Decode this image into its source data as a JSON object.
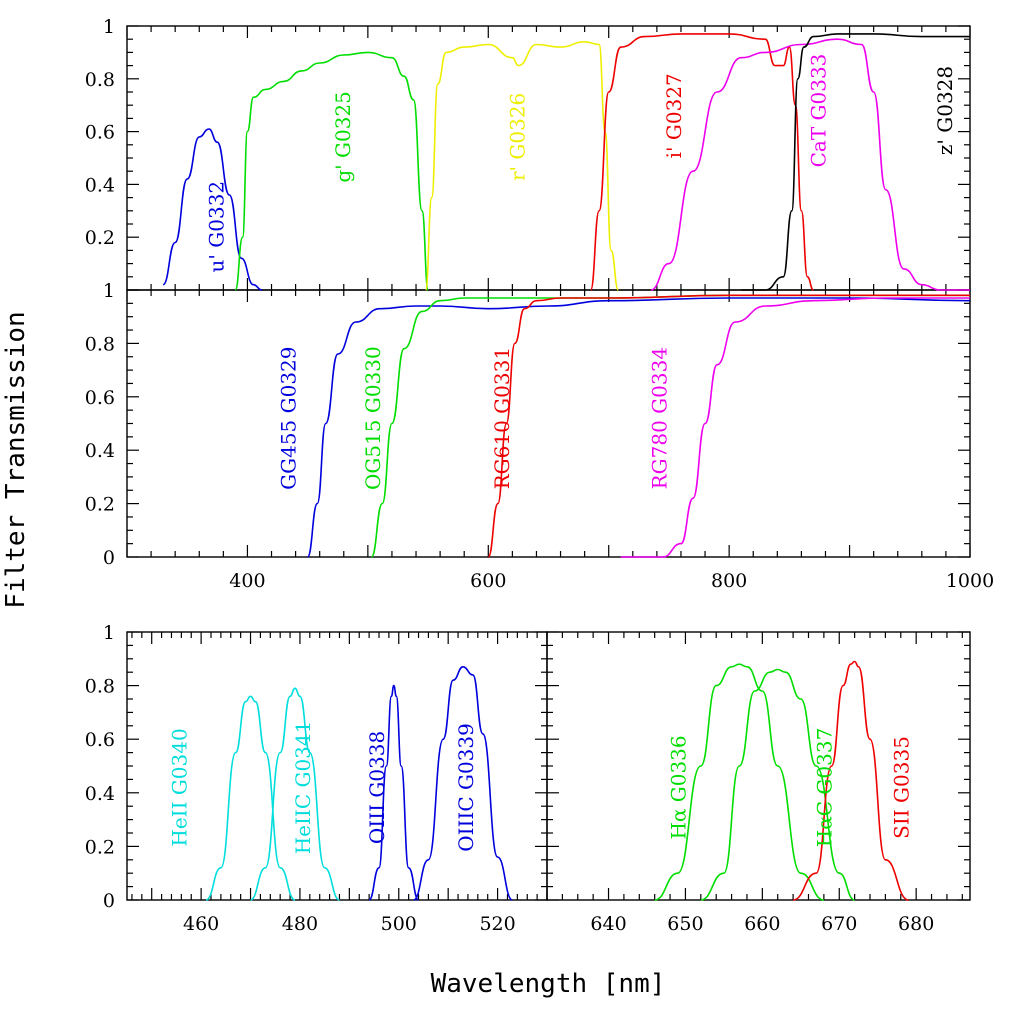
{
  "chart_data": [
    {
      "type": "line",
      "panel": "top",
      "ylim": [
        0,
        1
      ],
      "xlim": [
        300,
        1000
      ],
      "yticks": [
        "0.2",
        "0.4",
        "0.6",
        "0.8",
        "1"
      ],
      "series": [
        {
          "name": "u' G0332",
          "color": "#0000dd",
          "x": [
            330,
            340,
            350,
            360,
            368,
            375,
            385,
            395,
            405,
            412
          ],
          "y": [
            0.02,
            0.18,
            0.42,
            0.58,
            0.61,
            0.56,
            0.36,
            0.12,
            0.02,
            0
          ]
        },
        {
          "name": "g' G0325",
          "color": "#00dd00",
          "x": [
            390,
            396,
            400,
            405,
            415,
            430,
            445,
            460,
            480,
            500,
            520,
            530,
            538,
            545,
            550
          ],
          "y": [
            0,
            0.2,
            0.6,
            0.73,
            0.76,
            0.79,
            0.83,
            0.86,
            0.89,
            0.9,
            0.88,
            0.81,
            0.72,
            0.3,
            0
          ]
        },
        {
          "name": "r' G0326",
          "color": "#eeee00",
          "x": [
            548,
            553,
            558,
            565,
            580,
            600,
            620,
            625,
            640,
            660,
            680,
            692,
            697,
            702,
            708
          ],
          "y": [
            0,
            0.35,
            0.78,
            0.9,
            0.92,
            0.93,
            0.88,
            0.85,
            0.93,
            0.92,
            0.94,
            0.93,
            0.6,
            0.15,
            0
          ]
        },
        {
          "name": "i' G0327",
          "color": "#ee0000",
          "x": [
            685,
            692,
            700,
            710,
            730,
            760,
            800,
            830,
            838,
            845,
            850,
            855,
            860,
            865,
            870
          ],
          "y": [
            0,
            0.3,
            0.75,
            0.92,
            0.96,
            0.97,
            0.97,
            0.95,
            0.85,
            0.85,
            0.92,
            0.7,
            0.3,
            0.05,
            0
          ]
        },
        {
          "name": "CaT G0333",
          "color": "#ee00ee",
          "x": [
            735,
            750,
            770,
            790,
            810,
            830,
            860,
            890,
            910,
            920,
            930,
            945,
            960,
            975,
            1000
          ],
          "y": [
            0,
            0.1,
            0.45,
            0.75,
            0.88,
            0.9,
            0.93,
            0.95,
            0.93,
            0.75,
            0.38,
            0.08,
            0.02,
            0,
            0
          ]
        },
        {
          "name": "z' G0328",
          "color": "#000000",
          "x": [
            810,
            830,
            845,
            852,
            857,
            862,
            870,
            890,
            920,
            960,
            1000
          ],
          "y": [
            0,
            0,
            0.05,
            0.3,
            0.8,
            0.92,
            0.96,
            0.97,
            0.97,
            0.96,
            0.96
          ]
        }
      ]
    },
    {
      "type": "line",
      "panel": "middle",
      "ylim": [
        0,
        1
      ],
      "xlim": [
        300,
        1000
      ],
      "xticks": [
        "400",
        "600",
        "800",
        "1000"
      ],
      "yticks": [
        "0",
        "0.2",
        "0.4",
        "0.6",
        "0.8",
        "1"
      ],
      "series": [
        {
          "name": "GG455 G0329",
          "color": "#0000dd",
          "x": [
            450,
            458,
            465,
            475,
            490,
            510,
            540,
            560,
            600,
            650,
            700,
            800,
            900,
            1000
          ],
          "y": [
            0,
            0.2,
            0.5,
            0.76,
            0.88,
            0.93,
            0.94,
            0.94,
            0.93,
            0.94,
            0.96,
            0.97,
            0.97,
            0.96
          ]
        },
        {
          "name": "OG515 G0330",
          "color": "#00dd00",
          "x": [
            503,
            512,
            520,
            530,
            545,
            560,
            580,
            620,
            700,
            800,
            1000
          ],
          "y": [
            0,
            0.2,
            0.5,
            0.78,
            0.92,
            0.96,
            0.97,
            0.97,
            0.97,
            0.98,
            0.98
          ]
        },
        {
          "name": "RG610 G0331",
          "color": "#ee0000",
          "x": [
            600,
            608,
            615,
            622,
            630,
            640,
            660,
            700,
            800,
            1000
          ],
          "y": [
            0,
            0.2,
            0.5,
            0.8,
            0.93,
            0.96,
            0.97,
            0.97,
            0.98,
            0.98
          ]
        },
        {
          "name": "RG780 G0334",
          "color": "#ee00ee",
          "x": [
            710,
            745,
            760,
            770,
            780,
            790,
            805,
            830,
            870,
            930,
            1000
          ],
          "y": [
            0,
            0,
            0.05,
            0.22,
            0.5,
            0.72,
            0.88,
            0.94,
            0.96,
            0.97,
            0.97
          ]
        }
      ]
    },
    {
      "type": "line",
      "panel": "bottom-left",
      "ylim": [
        0,
        1
      ],
      "xlim": [
        445,
        530
      ],
      "xticks": [
        "460",
        "480",
        "500",
        "520"
      ],
      "yticks": [
        "0",
        "0.2",
        "0.4",
        "0.6",
        "0.8",
        "1"
      ],
      "series": [
        {
          "name": "HeII G0340",
          "color": "#00dddd",
          "x": [
            461,
            464,
            467,
            469,
            470,
            471,
            473,
            476,
            479
          ],
          "y": [
            0,
            0.12,
            0.55,
            0.74,
            0.76,
            0.74,
            0.55,
            0.12,
            0
          ]
        },
        {
          "name": "HeIIC G0341",
          "color": "#00dddd",
          "x": [
            470,
            473,
            476,
            478,
            479,
            480,
            482,
            485,
            488
          ],
          "y": [
            0,
            0.12,
            0.55,
            0.76,
            0.79,
            0.76,
            0.55,
            0.12,
            0
          ]
        },
        {
          "name": "OIII G0338",
          "color": "#0000dd",
          "x": [
            494,
            496,
            497.5,
            498.5,
            499,
            499.5,
            500.5,
            502,
            504
          ],
          "y": [
            0,
            0.12,
            0.5,
            0.76,
            0.8,
            0.76,
            0.5,
            0.12,
            0
          ]
        },
        {
          "name": "OIIIC G0339",
          "color": "#0000dd",
          "x": [
            503,
            506,
            509,
            511,
            513,
            515,
            517,
            520,
            523
          ],
          "y": [
            0,
            0.15,
            0.6,
            0.82,
            0.87,
            0.84,
            0.62,
            0.16,
            0
          ]
        }
      ]
    },
    {
      "type": "line",
      "panel": "bottom-right",
      "ylim": [
        0,
        1
      ],
      "xlim": [
        632,
        687
      ],
      "xticks": [
        "640",
        "650",
        "660",
        "670",
        "680"
      ],
      "series": [
        {
          "name": "Hα G0336",
          "color": "#00dd00",
          "x": [
            646,
            649,
            652,
            654,
            656,
            657,
            658,
            660,
            662,
            665,
            668
          ],
          "y": [
            0,
            0.1,
            0.5,
            0.8,
            0.87,
            0.88,
            0.87,
            0.78,
            0.5,
            0.1,
            0
          ]
        },
        {
          "name": "HαC G0337",
          "color": "#00dd00",
          "x": [
            652,
            655,
            657,
            659,
            661,
            662,
            663,
            665,
            667,
            670,
            672
          ],
          "y": [
            0,
            0.1,
            0.5,
            0.78,
            0.85,
            0.86,
            0.85,
            0.75,
            0.5,
            0.1,
            0
          ]
        },
        {
          "name": "SII G0335",
          "color": "#ee0000",
          "x": [
            664,
            667,
            669,
            670.5,
            671.5,
            672,
            672.5,
            674,
            676,
            679
          ],
          "y": [
            0,
            0.1,
            0.5,
            0.8,
            0.88,
            0.89,
            0.87,
            0.6,
            0.15,
            0
          ]
        }
      ]
    }
  ],
  "axes": {
    "ylabel": "Filter Transmission",
    "xlabel": "Wavelength [nm]"
  }
}
